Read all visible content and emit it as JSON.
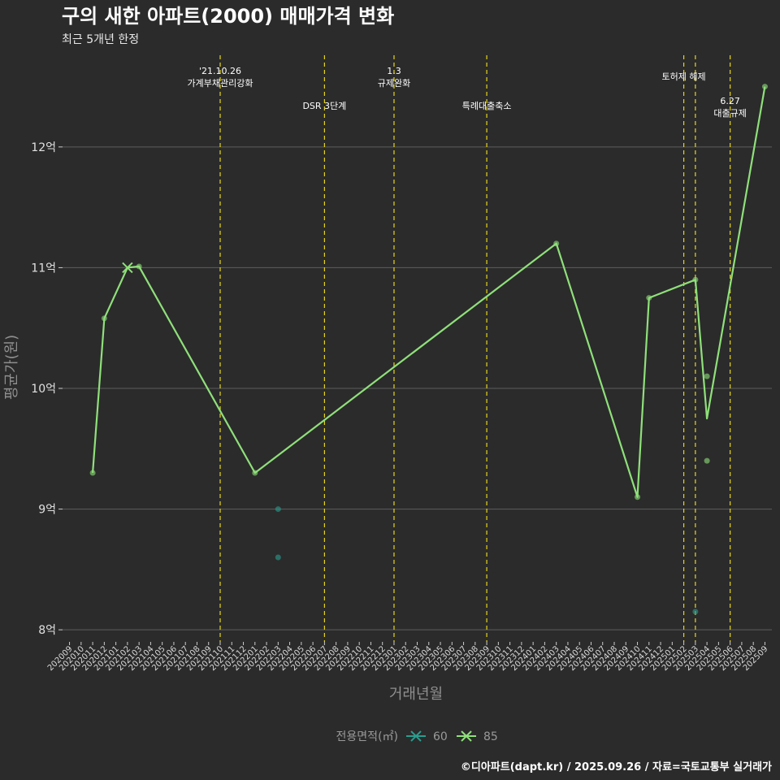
{
  "chart_data": {
    "type": "line",
    "title": "구의 새한 아파트(2000) 매매가격 변화",
    "subtitle": "최근 5개년 한정",
    "xlabel": "거래년월",
    "ylabel": "평균가(원)",
    "caption": "©디아파트(dapt.kr) / 2025.09.26 / 자료=국토교통부 실거래가",
    "legend": {
      "title": "전용면적(㎡)",
      "position": "bottom"
    },
    "ylim": [
      7.9,
      12.8
    ],
    "y_ticks": [
      {
        "value": 8,
        "label": "8억"
      },
      {
        "value": 9,
        "label": "9억"
      },
      {
        "value": 10,
        "label": "10억"
      },
      {
        "value": 11,
        "label": "11억"
      },
      {
        "value": 12,
        "label": "12억"
      }
    ],
    "grid": true,
    "x_categories": [
      "202009",
      "202010",
      "202011",
      "202012",
      "202101",
      "202102",
      "202103",
      "202104",
      "202105",
      "202106",
      "202107",
      "202108",
      "202109",
      "202110",
      "202111",
      "202112",
      "202201",
      "202202",
      "202203",
      "202204",
      "202205",
      "202206",
      "202207",
      "202208",
      "202209",
      "202210",
      "202211",
      "202212",
      "202301",
      "202302",
      "202303",
      "202304",
      "202305",
      "202306",
      "202307",
      "202308",
      "202309",
      "202310",
      "202311",
      "202312",
      "202401",
      "202402",
      "202403",
      "202404",
      "202405",
      "202406",
      "202407",
      "202408",
      "202409",
      "202410",
      "202411",
      "202412",
      "202501",
      "202502",
      "202503",
      "202504",
      "202505",
      "202506",
      "202507",
      "202508",
      "202509"
    ],
    "events": [
      {
        "x": "202110",
        "label": "'21.10.26\n가계부채관리강화",
        "row": 1
      },
      {
        "x": "202207",
        "label": "DSR 3단계",
        "row": 2
      },
      {
        "x": "202301",
        "label": "1.3\n규제완화",
        "row": 1
      },
      {
        "x": "202309",
        "label": "특례대출축소",
        "row": 2
      },
      {
        "x": "202502",
        "label": "토허제 해제",
        "row": 0
      },
      {
        "x": "202503",
        "label": "",
        "row": 0
      },
      {
        "x": "202506",
        "label": "6.27\n대출규제",
        "row": 3
      }
    ],
    "series": [
      {
        "name": "60",
        "color": "#2a9d8f",
        "line": [],
        "markers": [],
        "points": [
          {
            "x": "202203",
            "y": 9.0
          },
          {
            "x": "202203",
            "y": 8.6
          },
          {
            "x": "202503",
            "y": 8.15
          }
        ]
      },
      {
        "name": "85",
        "color": "#8fe07a",
        "line": [
          {
            "x": "202011",
            "y": 9.3
          },
          {
            "x": "202012",
            "y": 10.58
          },
          {
            "x": "202102",
            "y": 11.0
          },
          {
            "x": "202103",
            "y": 11.01
          },
          {
            "x": "202201",
            "y": 9.3
          },
          {
            "x": "202403",
            "y": 11.2
          },
          {
            "x": "202410",
            "y": 9.1
          },
          {
            "x": "202411",
            "y": 10.75
          },
          {
            "x": "202503",
            "y": 10.9
          },
          {
            "x": "202504",
            "y": 9.75
          },
          {
            "x": "202509",
            "y": 12.5
          }
        ],
        "markers": [
          {
            "x": "202102",
            "y": 11.0
          }
        ],
        "points": [
          {
            "x": "202011",
            "y": 9.3
          },
          {
            "x": "202012",
            "y": 10.58
          },
          {
            "x": "202103",
            "y": 11.01
          },
          {
            "x": "202201",
            "y": 9.3
          },
          {
            "x": "202403",
            "y": 11.2
          },
          {
            "x": "202410",
            "y": 9.1
          },
          {
            "x": "202411",
            "y": 10.75
          },
          {
            "x": "202503",
            "y": 10.9
          },
          {
            "x": "202504",
            "y": 10.1
          },
          {
            "x": "202504",
            "y": 9.4
          },
          {
            "x": "202509",
            "y": 12.5
          }
        ]
      }
    ]
  }
}
